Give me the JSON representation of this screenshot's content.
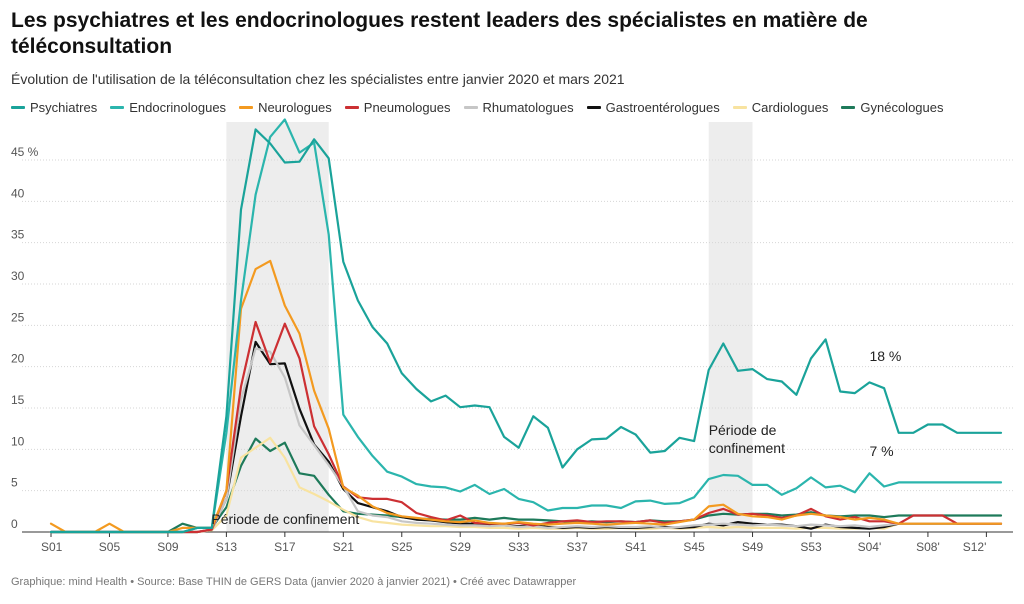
{
  "title": "Les psychiatres et les endocrinologues restent leaders des spécialistes en matière de téléconsultation",
  "subtitle": "Évolution de l'utilisation de la téléconsultation chez les spécialistes entre janvier 2020 et mars 2021",
  "footer": "Graphique: mind Health • Source: Base THIN de GERS Data (janvier 2020 à janvier 2021) • Créé avec Datawrapper",
  "chart_data": {
    "type": "line",
    "title": "Les psychiatres et les endocrinologues restent leaders des spécialistes en matière de téléconsultation",
    "ylim": [
      0,
      47
    ],
    "y_ticks": [
      0,
      5,
      10,
      15,
      20,
      25,
      30,
      35,
      40,
      45
    ],
    "y_tick_labels": [
      "0",
      "5",
      "10",
      "15",
      "20",
      "25",
      "30",
      "35",
      "40",
      "45 %"
    ],
    "x_tick_labels": [
      "S01",
      "S05",
      "S09",
      "S13",
      "S17",
      "S21",
      "S25",
      "S29",
      "S33",
      "S37",
      "S41",
      "S45",
      "S49",
      "S53",
      "S04'",
      "S08'",
      "S12'"
    ],
    "x_tick_every": 4,
    "grid": true,
    "legend_position": "top",
    "shaded_periods": [
      {
        "start": 13,
        "end": 20,
        "label": "Période de confinement"
      },
      {
        "start": 46,
        "end": 49,
        "label": "Période de confinement"
      }
    ],
    "annotations": [
      {
        "text": "18 %",
        "x": 56,
        "y": 20.7
      },
      {
        "text": "7 %",
        "x": 56,
        "y": 9.2
      }
    ],
    "series": [
      {
        "name": "Psychiatres",
        "color": "#1aa39a",
        "values": [
          0,
          0,
          0,
          0,
          0,
          0,
          0,
          0,
          0,
          0,
          0.5,
          0.5,
          14,
          39,
          48.7,
          47,
          44.7,
          44.8,
          47.5,
          45.2,
          32.7,
          28,
          24.8,
          22.8,
          19.2,
          17.3,
          15.8,
          16.5,
          15.1,
          15.3,
          15.1,
          11.5,
          10.2,
          14,
          12.6,
          7.8,
          10,
          11.2,
          11.3,
          12.7,
          11.8,
          9.6,
          9.8,
          11.4,
          11,
          19.6,
          22.8,
          19.5,
          19.7,
          18.5,
          18.2,
          16.6,
          21,
          23.3,
          17,
          16.8,
          18.1,
          17.4,
          12,
          12,
          13,
          13,
          12,
          12,
          12,
          12
        ]
      },
      {
        "name": "Endocrinologues",
        "color": "#2bb5ad",
        "values": [
          0,
          0,
          0,
          0,
          0,
          0,
          0,
          0,
          0,
          0,
          0.5,
          0.5,
          12,
          28,
          40.8,
          47.8,
          49.9,
          45.9,
          47.1,
          36,
          14.2,
          11.5,
          9.2,
          7.3,
          6.7,
          5.8,
          5.5,
          5.4,
          4.9,
          5.7,
          4.6,
          5.2,
          4,
          3.6,
          2.6,
          2.9,
          2.9,
          3.2,
          3.2,
          2.9,
          3.7,
          3.8,
          3.4,
          3.5,
          4.2,
          6.4,
          6.9,
          6.8,
          5.7,
          5.7,
          4.5,
          5.3,
          6.6,
          5.4,
          5.6,
          4.8,
          7.1,
          5.5,
          6,
          6,
          6,
          6,
          6,
          6,
          6,
          6
        ]
      },
      {
        "name": "Neurologues",
        "color": "#f39a20",
        "values": [
          1,
          0,
          0,
          0,
          1,
          0,
          0,
          0,
          0,
          0.5,
          0.5,
          0.5,
          5,
          27,
          31.8,
          32.8,
          27.4,
          24,
          17.1,
          12.5,
          5.4,
          4.4,
          3.1,
          2.3,
          1.9,
          1.7,
          1.5,
          1.3,
          1.2,
          1.4,
          1.1,
          1,
          1.2,
          1,
          0.9,
          1,
          1.1,
          1,
          0.9,
          1,
          1.1,
          1,
          0.9,
          1.2,
          1.5,
          3.1,
          3.3,
          2.2,
          1.9,
          1.8,
          1.5,
          2,
          2.2,
          2,
          1.8,
          1.5,
          1.7,
          1.5,
          1,
          1,
          1,
          1,
          1,
          1,
          1,
          1
        ]
      },
      {
        "name": "Pneumologues",
        "color": "#cc3033",
        "values": [
          0,
          0,
          0,
          0,
          0,
          0,
          0,
          0,
          0,
          0,
          0,
          0.3,
          5,
          17.6,
          25.4,
          20.5,
          25.2,
          21,
          12.8,
          9.4,
          5.5,
          4.2,
          4,
          4,
          3.6,
          2.3,
          1.8,
          1.4,
          2,
          1.1,
          1,
          1,
          1.1,
          0.8,
          1.1,
          1.3,
          1.4,
          1.2,
          1.3,
          1.3,
          1.2,
          1.4,
          1.1,
          1.3,
          1.5,
          2.3,
          2.8,
          2.1,
          2.2,
          2,
          1.7,
          2,
          2.8,
          1.9,
          1.5,
          1.8,
          1.3,
          1.3,
          1,
          2,
          2,
          2,
          1,
          1,
          1,
          1
        ]
      },
      {
        "name": "Rhumatologues",
        "color": "#c6c6c6",
        "values": [
          0,
          0,
          0,
          0,
          0,
          0,
          0,
          0,
          0,
          0,
          0,
          0.3,
          4,
          16,
          22.2,
          21.8,
          18.7,
          12.9,
          10.5,
          8.1,
          5.5,
          2.5,
          2,
          1.8,
          1.3,
          1.1,
          1,
          0.9,
          0.8,
          0.8,
          0.7,
          0.8,
          0.6,
          0.7,
          0.5,
          0.6,
          0.7,
          0.6,
          0.7,
          0.6,
          0.6,
          0.7,
          0.5,
          0.6,
          0.8,
          0.9,
          1,
          0.9,
          0.8,
          0.9,
          0.8,
          0.7,
          0.9,
          0.8,
          0.7,
          0.8,
          0.6,
          0.8,
          1,
          1,
          1,
          1,
          1,
          1,
          1,
          1
        ]
      },
      {
        "name": "Gastroentérologues",
        "color": "#111111",
        "values": [
          0,
          0,
          0,
          0,
          0,
          0,
          0,
          0,
          0,
          0,
          0,
          0.3,
          4,
          14,
          23,
          20.3,
          20.4,
          14.9,
          10.6,
          8.5,
          5.2,
          3.5,
          3,
          2.5,
          1.8,
          1.5,
          1.4,
          1.2,
          1,
          1,
          0.9,
          0.8,
          0.7,
          0.8,
          0.6,
          0.5,
          0.6,
          0.5,
          0.6,
          0.5,
          0.5,
          0.6,
          0.6,
          0.5,
          0.6,
          1,
          0.8,
          1.2,
          1,
          0.9,
          0.9,
          0.7,
          0.4,
          0.9,
          0.6,
          0.5,
          0.4,
          0.6,
          1,
          1,
          1,
          1,
          1,
          1,
          1,
          1
        ]
      },
      {
        "name": "Cardiologues",
        "color": "#f8e3a0",
        "values": [
          0,
          0,
          0,
          0,
          0,
          0,
          0,
          0,
          0,
          0,
          0,
          0.2,
          2,
          9,
          10.2,
          11.4,
          9,
          5.4,
          4.6,
          3.7,
          2.7,
          1.8,
          1.3,
          1.1,
          0.9,
          0.8,
          0.7,
          0.7,
          0.6,
          0.6,
          0.5,
          0.5,
          0.4,
          0.5,
          0.4,
          0.4,
          0.5,
          0.4,
          0.4,
          0.5,
          0.4,
          0.4,
          0.5,
          0.4,
          0.5,
          0.6,
          0.5,
          0.6,
          0.5,
          0.5,
          0.5,
          0.4,
          0.5,
          0.5,
          0.4,
          0.4,
          0.5,
          0.4,
          1,
          1,
          1,
          1,
          1,
          1,
          1,
          1
        ]
      },
      {
        "name": "Gynécologues",
        "color": "#1e7a5a",
        "values": [
          0,
          0,
          0,
          0,
          0,
          0,
          0,
          0,
          0,
          1,
          0.5,
          0.5,
          3,
          8,
          11.3,
          9.8,
          10.8,
          7.1,
          6.8,
          4.5,
          2.5,
          2.2,
          2.1,
          2,
          1.8,
          1.6,
          1.6,
          1.5,
          1.5,
          1.7,
          1.5,
          1.7,
          1.5,
          1.5,
          1.4,
          1.3,
          1.2,
          1.3,
          1.2,
          1.3,
          1.2,
          1.4,
          1.3,
          1.3,
          1.5,
          2,
          2.2,
          2.1,
          2.2,
          2.2,
          2,
          2.1,
          2.4,
          2,
          1.9,
          2,
          2,
          1.8,
          2,
          2,
          2,
          2,
          2,
          2,
          2,
          2
        ]
      }
    ]
  }
}
